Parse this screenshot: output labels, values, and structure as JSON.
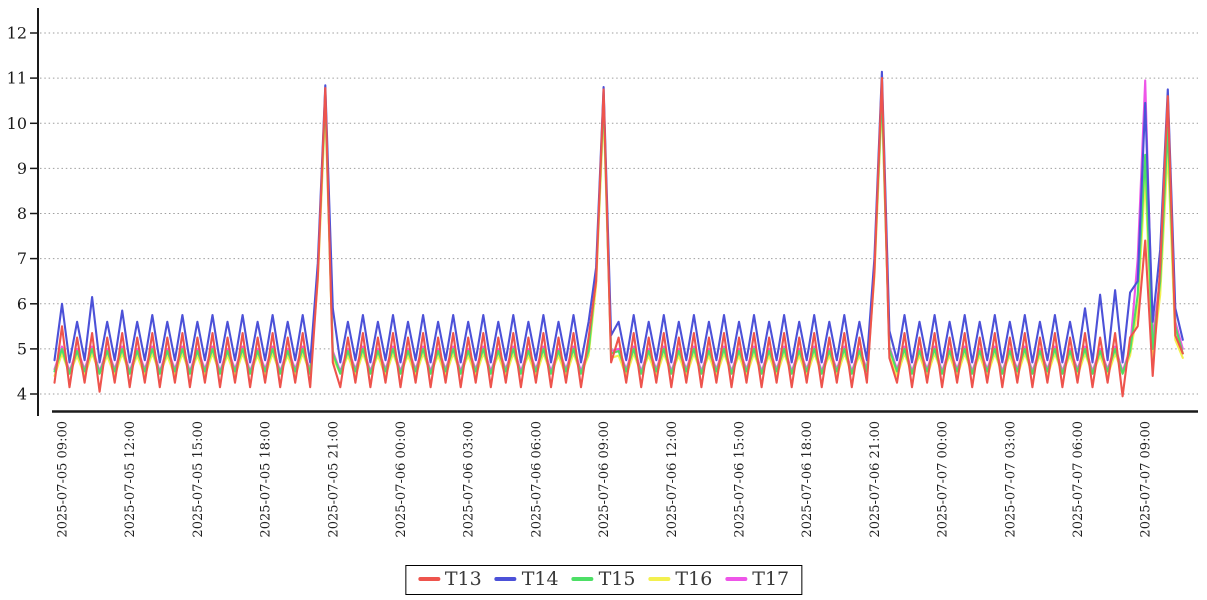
{
  "chart_data": {
    "type": "line",
    "title": "",
    "xlabel": "",
    "ylabel": "",
    "grid": {
      "horizontal": true,
      "vertical": false,
      "style": "dotted",
      "color": "#9e9e9e"
    },
    "legend": {
      "position": "bottom-center",
      "border_color": "#000000"
    },
    "y_axis": {
      "ticks": [
        4,
        5,
        6,
        7,
        8,
        9,
        10,
        11,
        12
      ],
      "range": [
        3.6,
        12.55
      ]
    },
    "x_axis": {
      "start": "2025-07-05 08:40",
      "step_minutes": 20,
      "points": 151,
      "first_tick_point_index": 1,
      "tick_every_points": 9,
      "tick_labels": [
        "2025-07-05 09:00",
        "2025-07-05 12:00",
        "2025-07-05 15:00",
        "2025-07-05 18:00",
        "2025-07-05 21:00",
        "2025-07-06 00:00",
        "2025-07-06 03:00",
        "2025-07-06 06:00",
        "2025-07-06 09:00",
        "2025-07-06 12:00",
        "2025-07-06 15:00",
        "2025-07-06 18:00",
        "2025-07-06 21:00",
        "2025-07-07 00:00",
        "2025-07-07 03:00",
        "2025-07-07 06:00",
        "2025-07-07 09:00"
      ]
    },
    "series": [
      {
        "name": "T13",
        "color": "#ee544d",
        "values": [
          4.25,
          5.5,
          4.15,
          5.25,
          4.25,
          5.35,
          4.05,
          5.25,
          4.25,
          5.35,
          4.15,
          5.25,
          4.25,
          5.35,
          4.15,
          5.25,
          4.25,
          5.35,
          4.15,
          5.25,
          4.25,
          5.35,
          4.15,
          5.25,
          4.25,
          5.35,
          4.15,
          5.25,
          4.25,
          5.35,
          4.15,
          5.25,
          4.25,
          5.35,
          4.15,
          6.6,
          10.78,
          4.7,
          4.15,
          5.25,
          4.25,
          5.35,
          4.15,
          5.25,
          4.25,
          5.35,
          4.15,
          5.25,
          4.25,
          5.35,
          4.15,
          5.25,
          4.25,
          5.35,
          4.15,
          5.25,
          4.25,
          5.35,
          4.15,
          5.25,
          4.25,
          5.35,
          4.15,
          5.25,
          4.25,
          5.35,
          4.15,
          5.25,
          4.25,
          5.35,
          4.15,
          5.25,
          6.5,
          10.75,
          4.7,
          5.25,
          4.25,
          5.35,
          4.15,
          5.25,
          4.25,
          5.35,
          4.15,
          5.25,
          4.25,
          5.35,
          4.15,
          5.25,
          4.25,
          5.35,
          4.15,
          5.25,
          4.25,
          5.35,
          4.15,
          5.25,
          4.25,
          5.35,
          4.15,
          5.25,
          4.25,
          5.35,
          4.15,
          5.25,
          4.25,
          5.35,
          4.15,
          5.25,
          4.25,
          6.7,
          11.0,
          4.8,
          4.25,
          5.35,
          4.15,
          5.25,
          4.25,
          5.35,
          4.15,
          5.25,
          4.25,
          5.35,
          4.15,
          5.25,
          4.25,
          5.35,
          4.15,
          5.25,
          4.25,
          5.35,
          4.15,
          5.25,
          4.25,
          5.35,
          4.15,
          5.25,
          4.25,
          5.35,
          4.15,
          5.25,
          4.25,
          5.35,
          3.95,
          5.25,
          5.5,
          7.4,
          4.4,
          6.8,
          10.6,
          5.3,
          4.9
        ]
      },
      {
        "name": "T14",
        "color": "#4c51d8",
        "values": [
          4.75,
          6.0,
          4.7,
          5.6,
          4.75,
          6.15,
          4.7,
          5.6,
          4.75,
          5.85,
          4.7,
          5.6,
          4.75,
          5.75,
          4.7,
          5.6,
          4.75,
          5.75,
          4.7,
          5.6,
          4.75,
          5.75,
          4.7,
          5.6,
          4.75,
          5.75,
          4.7,
          5.6,
          4.75,
          5.75,
          4.7,
          5.6,
          4.75,
          5.75,
          4.7,
          6.9,
          10.84,
          5.9,
          4.7,
          5.6,
          4.75,
          5.75,
          4.7,
          5.6,
          4.75,
          5.75,
          4.7,
          5.6,
          4.75,
          5.75,
          4.7,
          5.6,
          4.75,
          5.75,
          4.7,
          5.6,
          4.75,
          5.75,
          4.7,
          5.6,
          4.75,
          5.75,
          4.7,
          5.6,
          4.75,
          5.75,
          4.7,
          5.6,
          4.75,
          5.75,
          4.7,
          5.6,
          6.8,
          10.8,
          5.3,
          5.6,
          4.75,
          5.75,
          4.7,
          5.6,
          4.75,
          5.75,
          4.7,
          5.6,
          4.75,
          5.75,
          4.7,
          5.6,
          4.75,
          5.75,
          4.7,
          5.6,
          4.75,
          5.75,
          4.7,
          5.6,
          4.75,
          5.75,
          4.7,
          5.6,
          4.75,
          5.75,
          4.7,
          5.6,
          4.75,
          5.75,
          4.7,
          5.6,
          4.75,
          7.0,
          11.14,
          5.4,
          4.75,
          5.75,
          4.7,
          5.6,
          4.75,
          5.75,
          4.7,
          5.6,
          4.75,
          5.75,
          4.7,
          5.6,
          4.75,
          5.75,
          4.7,
          5.6,
          4.75,
          5.75,
          4.7,
          5.6,
          4.75,
          5.75,
          4.7,
          5.6,
          4.75,
          5.9,
          4.7,
          6.2,
          4.75,
          6.3,
          4.7,
          6.25,
          6.5,
          10.45,
          5.6,
          7.2,
          10.75,
          5.9,
          5.2
        ]
      },
      {
        "name": "T15",
        "color": "#4ddf66",
        "values": [
          4.5,
          5.0,
          4.45,
          4.95,
          4.5,
          5.0,
          4.45,
          4.95,
          4.5,
          5.0,
          4.45,
          4.95,
          4.5,
          5.0,
          4.45,
          4.95,
          4.5,
          5.0,
          4.45,
          4.95,
          4.5,
          5.0,
          4.45,
          4.95,
          4.5,
          5.0,
          4.45,
          4.95,
          4.5,
          5.0,
          4.45,
          4.95,
          4.5,
          5.0,
          4.45,
          6.7,
          10.6,
          4.9,
          4.45,
          4.95,
          4.5,
          5.0,
          4.45,
          4.95,
          4.5,
          5.0,
          4.45,
          4.95,
          4.5,
          5.0,
          4.45,
          4.95,
          4.5,
          5.0,
          4.45,
          4.95,
          4.5,
          5.0,
          4.45,
          4.95,
          4.5,
          5.0,
          4.45,
          4.95,
          4.5,
          5.0,
          4.45,
          4.95,
          4.5,
          5.0,
          4.45,
          4.95,
          6.6,
          10.55,
          4.9,
          4.95,
          4.5,
          5.0,
          4.45,
          4.95,
          4.5,
          5.0,
          4.45,
          4.95,
          4.5,
          5.0,
          4.45,
          4.95,
          4.5,
          5.0,
          4.45,
          4.95,
          4.5,
          5.0,
          4.45,
          4.95,
          4.5,
          5.0,
          4.45,
          4.95,
          4.5,
          5.0,
          4.45,
          4.95,
          4.5,
          5.0,
          4.45,
          4.95,
          4.5,
          6.8,
          10.7,
          5.0,
          4.5,
          5.0,
          4.45,
          4.95,
          4.5,
          5.0,
          4.45,
          4.95,
          4.5,
          5.0,
          4.45,
          4.95,
          4.5,
          5.0,
          4.45,
          4.95,
          4.5,
          5.0,
          4.45,
          4.95,
          4.5,
          5.0,
          4.45,
          4.95,
          4.5,
          5.0,
          4.45,
          4.95,
          4.5,
          5.0,
          4.45,
          4.95,
          6.2,
          9.3,
          5.0,
          6.5,
          9.9,
          5.5,
          4.9
        ]
      },
      {
        "name": "T16",
        "color": "#f3f04f",
        "values": [
          4.4,
          4.9,
          4.45,
          4.85,
          4.4,
          4.9,
          4.45,
          4.85,
          4.4,
          4.9,
          4.45,
          4.85,
          4.4,
          4.9,
          4.45,
          4.85,
          4.4,
          4.9,
          4.45,
          4.85,
          4.4,
          4.9,
          4.45,
          4.85,
          4.4,
          4.9,
          4.45,
          4.85,
          4.4,
          4.9,
          4.45,
          4.85,
          4.4,
          4.9,
          4.45,
          6.5,
          10.35,
          4.8,
          4.45,
          4.85,
          4.4,
          4.9,
          4.45,
          4.85,
          4.4,
          4.9,
          4.45,
          4.85,
          4.4,
          4.9,
          4.45,
          4.85,
          4.4,
          4.9,
          4.45,
          4.85,
          4.4,
          4.9,
          4.45,
          4.85,
          4.4,
          4.9,
          4.45,
          4.85,
          4.4,
          4.9,
          4.45,
          4.85,
          4.4,
          4.9,
          4.45,
          4.85,
          6.4,
          10.3,
          4.8,
          4.85,
          4.4,
          4.9,
          4.45,
          4.85,
          4.4,
          4.9,
          4.45,
          4.85,
          4.4,
          4.9,
          4.45,
          4.85,
          4.4,
          4.9,
          4.45,
          4.85,
          4.4,
          4.9,
          4.45,
          4.85,
          4.4,
          4.9,
          4.45,
          4.85,
          4.4,
          4.9,
          4.45,
          4.85,
          4.4,
          4.9,
          4.45,
          4.85,
          4.4,
          6.6,
          10.5,
          4.9,
          4.4,
          4.9,
          4.45,
          4.85,
          4.4,
          4.9,
          4.45,
          4.85,
          4.4,
          4.9,
          4.45,
          4.85,
          4.4,
          4.9,
          4.45,
          4.85,
          4.4,
          4.9,
          4.45,
          4.85,
          4.4,
          4.9,
          4.45,
          4.85,
          4.4,
          4.9,
          4.45,
          4.85,
          4.4,
          4.9,
          4.45,
          4.85,
          5.9,
          8.8,
          4.8,
          6.2,
          9.4,
          5.2,
          4.8
        ]
      },
      {
        "name": "T17",
        "color": "#ee55e8",
        "values": [
          4.55,
          5.05,
          4.5,
          5.0,
          4.55,
          5.05,
          4.5,
          5.0,
          4.55,
          5.05,
          4.5,
          5.0,
          4.55,
          5.05,
          4.5,
          5.0,
          4.55,
          5.05,
          4.5,
          5.0,
          4.55,
          5.05,
          4.5,
          5.0,
          4.55,
          5.05,
          4.5,
          5.0,
          4.55,
          5.05,
          4.5,
          5.0,
          4.55,
          5.05,
          4.5,
          6.6,
          10.5,
          4.95,
          4.5,
          5.0,
          4.55,
          5.05,
          4.5,
          5.0,
          4.55,
          5.05,
          4.5,
          5.0,
          4.55,
          5.05,
          4.5,
          5.0,
          4.55,
          5.05,
          4.5,
          5.0,
          4.55,
          5.05,
          4.5,
          5.0,
          4.55,
          5.05,
          4.5,
          5.0,
          4.55,
          5.05,
          4.5,
          5.0,
          4.55,
          5.05,
          4.5,
          5.0,
          6.5,
          10.45,
          4.95,
          5.0,
          4.55,
          5.05,
          4.5,
          5.0,
          4.55,
          5.05,
          4.5,
          5.0,
          4.55,
          5.05,
          4.5,
          5.0,
          4.55,
          5.05,
          4.5,
          5.0,
          4.55,
          5.05,
          4.5,
          5.0,
          4.55,
          5.05,
          4.5,
          5.0,
          4.55,
          5.05,
          4.5,
          5.0,
          4.55,
          5.05,
          4.5,
          5.0,
          4.55,
          6.7,
          10.6,
          5.05,
          4.55,
          5.05,
          4.5,
          5.0,
          4.55,
          5.05,
          4.5,
          5.0,
          4.55,
          5.05,
          4.5,
          5.0,
          4.55,
          5.05,
          4.5,
          5.0,
          4.55,
          5.05,
          4.5,
          5.0,
          4.55,
          5.05,
          4.5,
          5.0,
          4.55,
          5.05,
          4.5,
          5.0,
          4.55,
          5.05,
          4.5,
          5.0,
          7.0,
          10.95,
          5.2,
          6.6,
          10.5,
          5.6,
          5.0
        ]
      }
    ]
  }
}
